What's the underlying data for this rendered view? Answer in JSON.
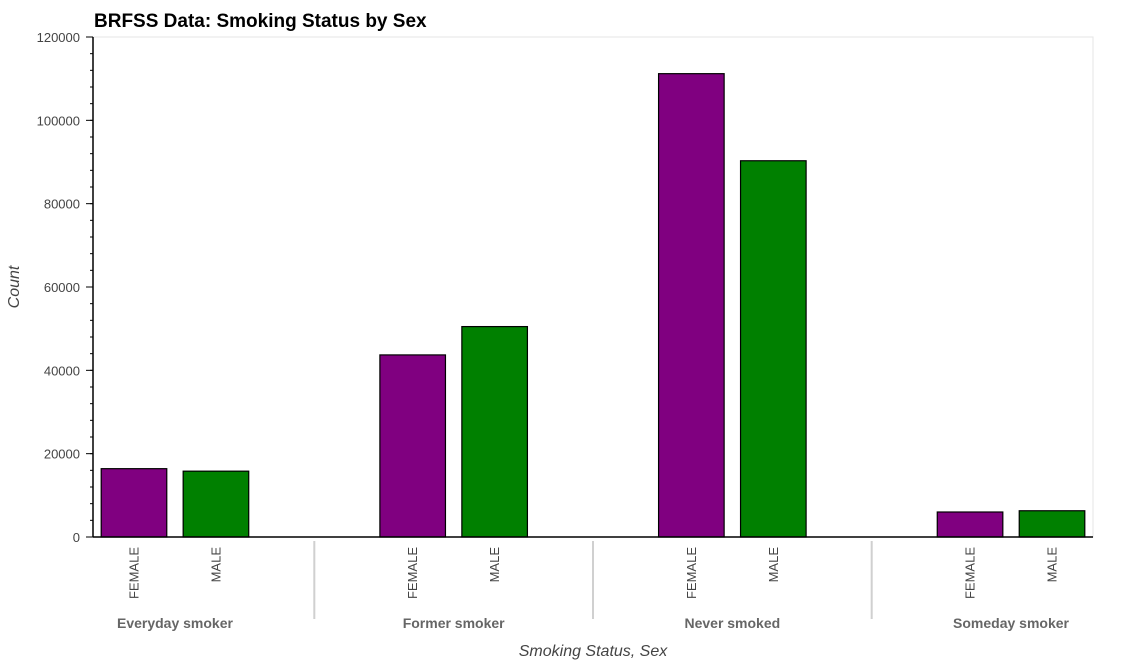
{
  "chart_data": {
    "type": "bar",
    "title": "BRFSS Data: Smoking Status by Sex",
    "xlabel": "Smoking Status, Sex",
    "ylabel": "Count",
    "ylim": [
      0,
      120000
    ],
    "yticks": [
      0,
      20000,
      40000,
      60000,
      80000,
      100000,
      120000
    ],
    "groups": [
      "Everyday smoker",
      "Former smoker",
      "Never smoked",
      "Someday smoker"
    ],
    "subcategories": [
      "FEMALE",
      "MALE"
    ],
    "series": [
      {
        "subcategory": "FEMALE",
        "values": [
          16400,
          43700,
          111200,
          6000
        ]
      },
      {
        "subcategory": "MALE",
        "values": [
          15800,
          50500,
          90300,
          6300
        ]
      }
    ],
    "colors": {
      "FEMALE": "#800080",
      "MALE": "#008000"
    },
    "grid": false,
    "legend": "none"
  }
}
